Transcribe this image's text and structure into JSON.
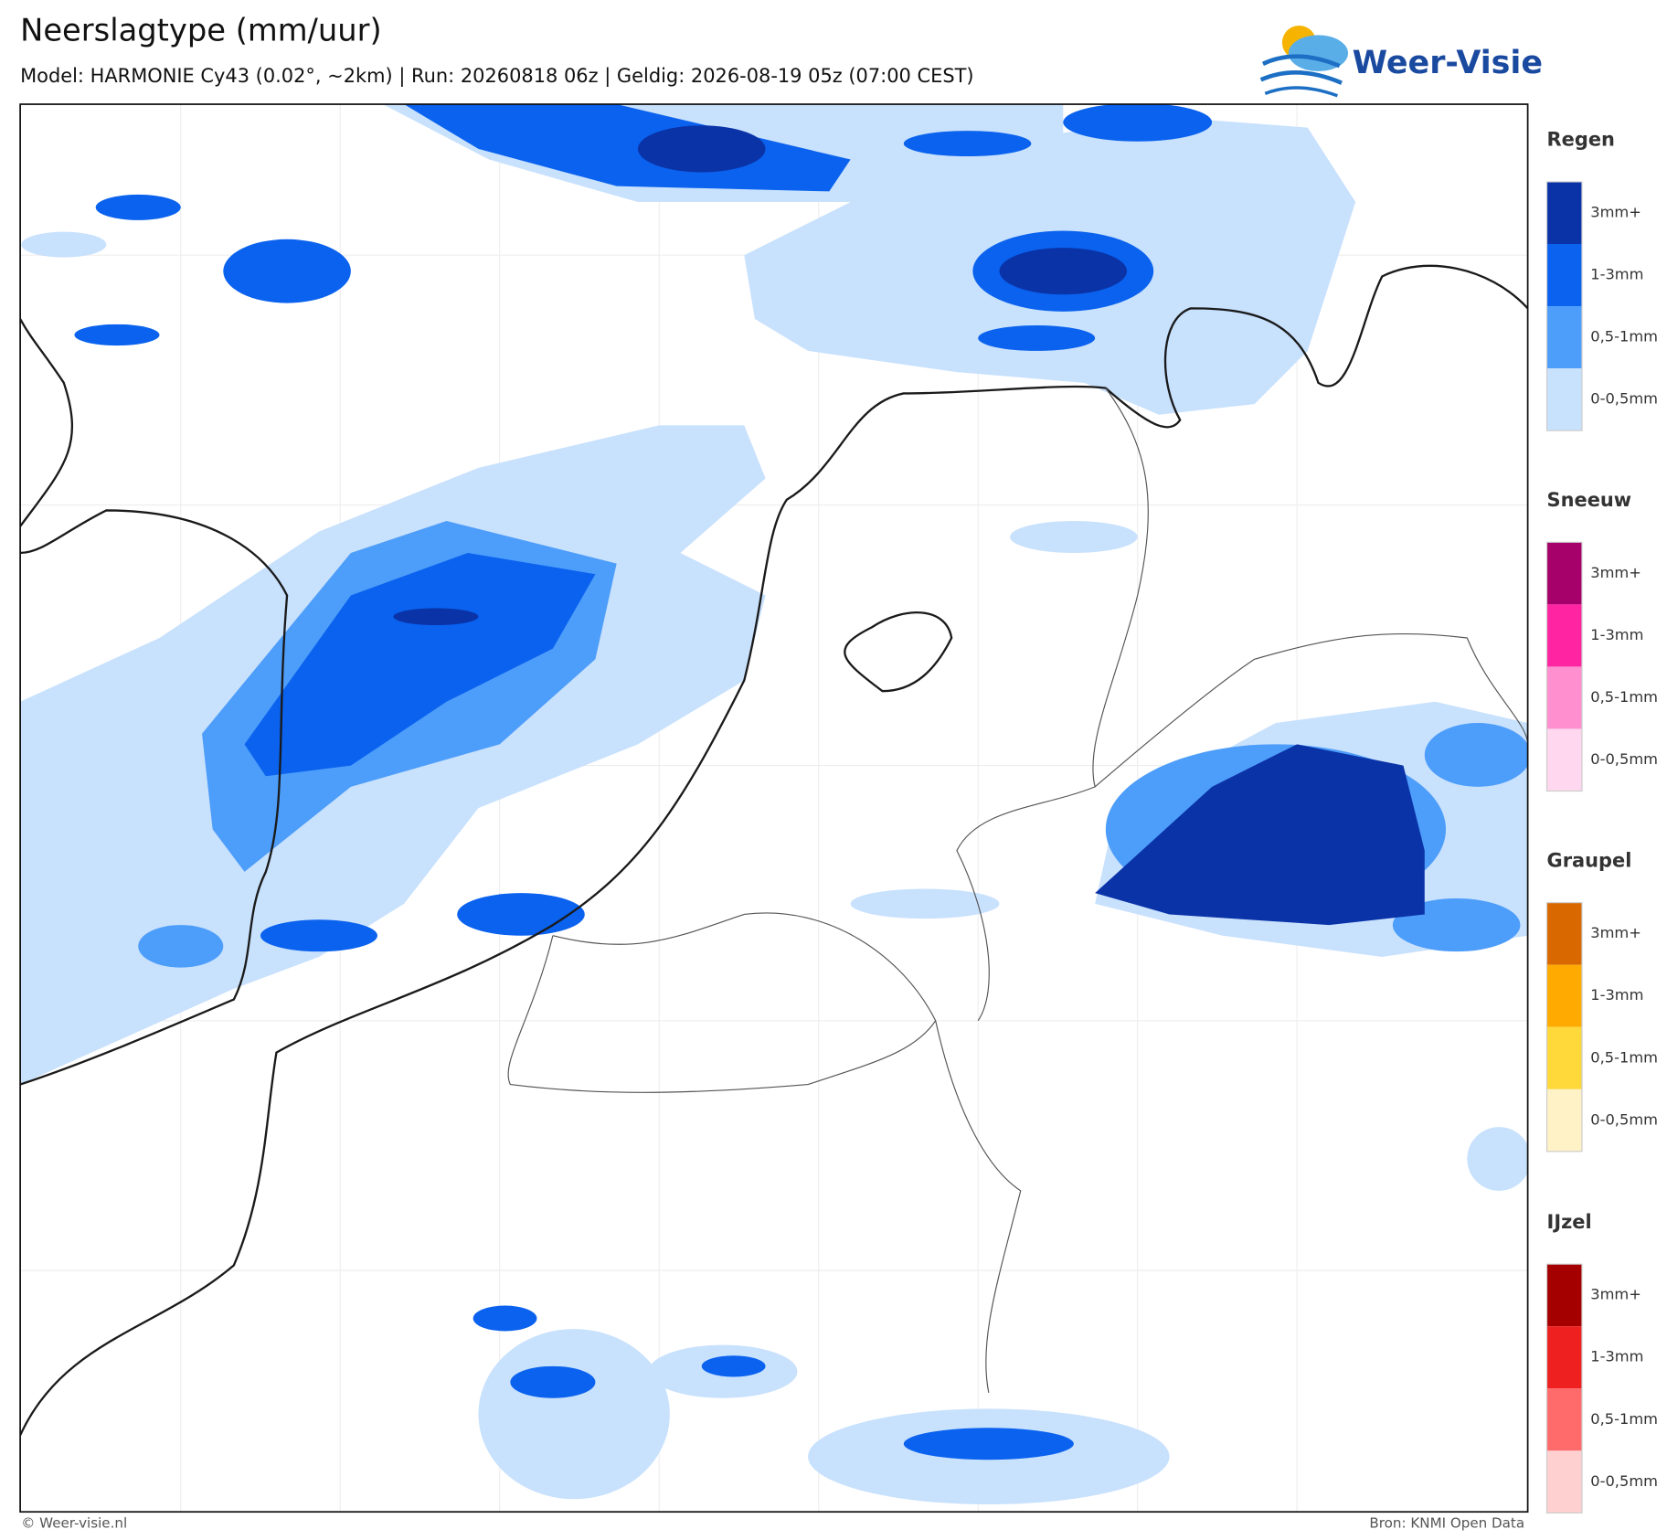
{
  "header": {
    "title": "Neerslagtype (mm/uur)",
    "subtitle": "Model: HARMONIE Cy43 (0.02°, ~2km)  |  Run: 20260818 06z  |  Geldig: 2026-08-19 05z (07:00 CEST)"
  },
  "logo": {
    "text": "Weer-Visie"
  },
  "legend": {
    "groups": [
      {
        "title": "Regen",
        "items": [
          {
            "label": "3mm+",
            "color": "#0a33a8"
          },
          {
            "label": "1-3mm",
            "color": "#0a62ee"
          },
          {
            "label": "0,5-1mm",
            "color": "#4d9dfa"
          },
          {
            "label": "0-0,5mm",
            "color": "#c8e1fd"
          }
        ]
      },
      {
        "title": "Sneeuw",
        "items": [
          {
            "label": "3mm+",
            "color": "#a6006b"
          },
          {
            "label": "1-3mm",
            "color": "#ff24a2"
          },
          {
            "label": "0,5-1mm",
            "color": "#ff8fcf"
          },
          {
            "label": "0-0,5mm",
            "color": "#ffd8ef"
          }
        ]
      },
      {
        "title": "Graupel",
        "items": [
          {
            "label": "3mm+",
            "color": "#d96800"
          },
          {
            "label": "1-3mm",
            "color": "#ffaa00"
          },
          {
            "label": "0,5-1mm",
            "color": "#ffd83a"
          },
          {
            "label": "0-0,5mm",
            "color": "#fff2c6"
          }
        ]
      },
      {
        "title": "IJzel",
        "items": [
          {
            "label": "3mm+",
            "color": "#a50000"
          },
          {
            "label": "1-3mm",
            "color": "#ee2020"
          },
          {
            "label": "0,5-1mm",
            "color": "#ff6a6a"
          },
          {
            "label": "0-0,5mm",
            "color": "#ffd0d0"
          }
        ]
      }
    ]
  },
  "footer": {
    "left": "© Weer-visie.nl",
    "right": "Bron: KNMI Open Data"
  }
}
